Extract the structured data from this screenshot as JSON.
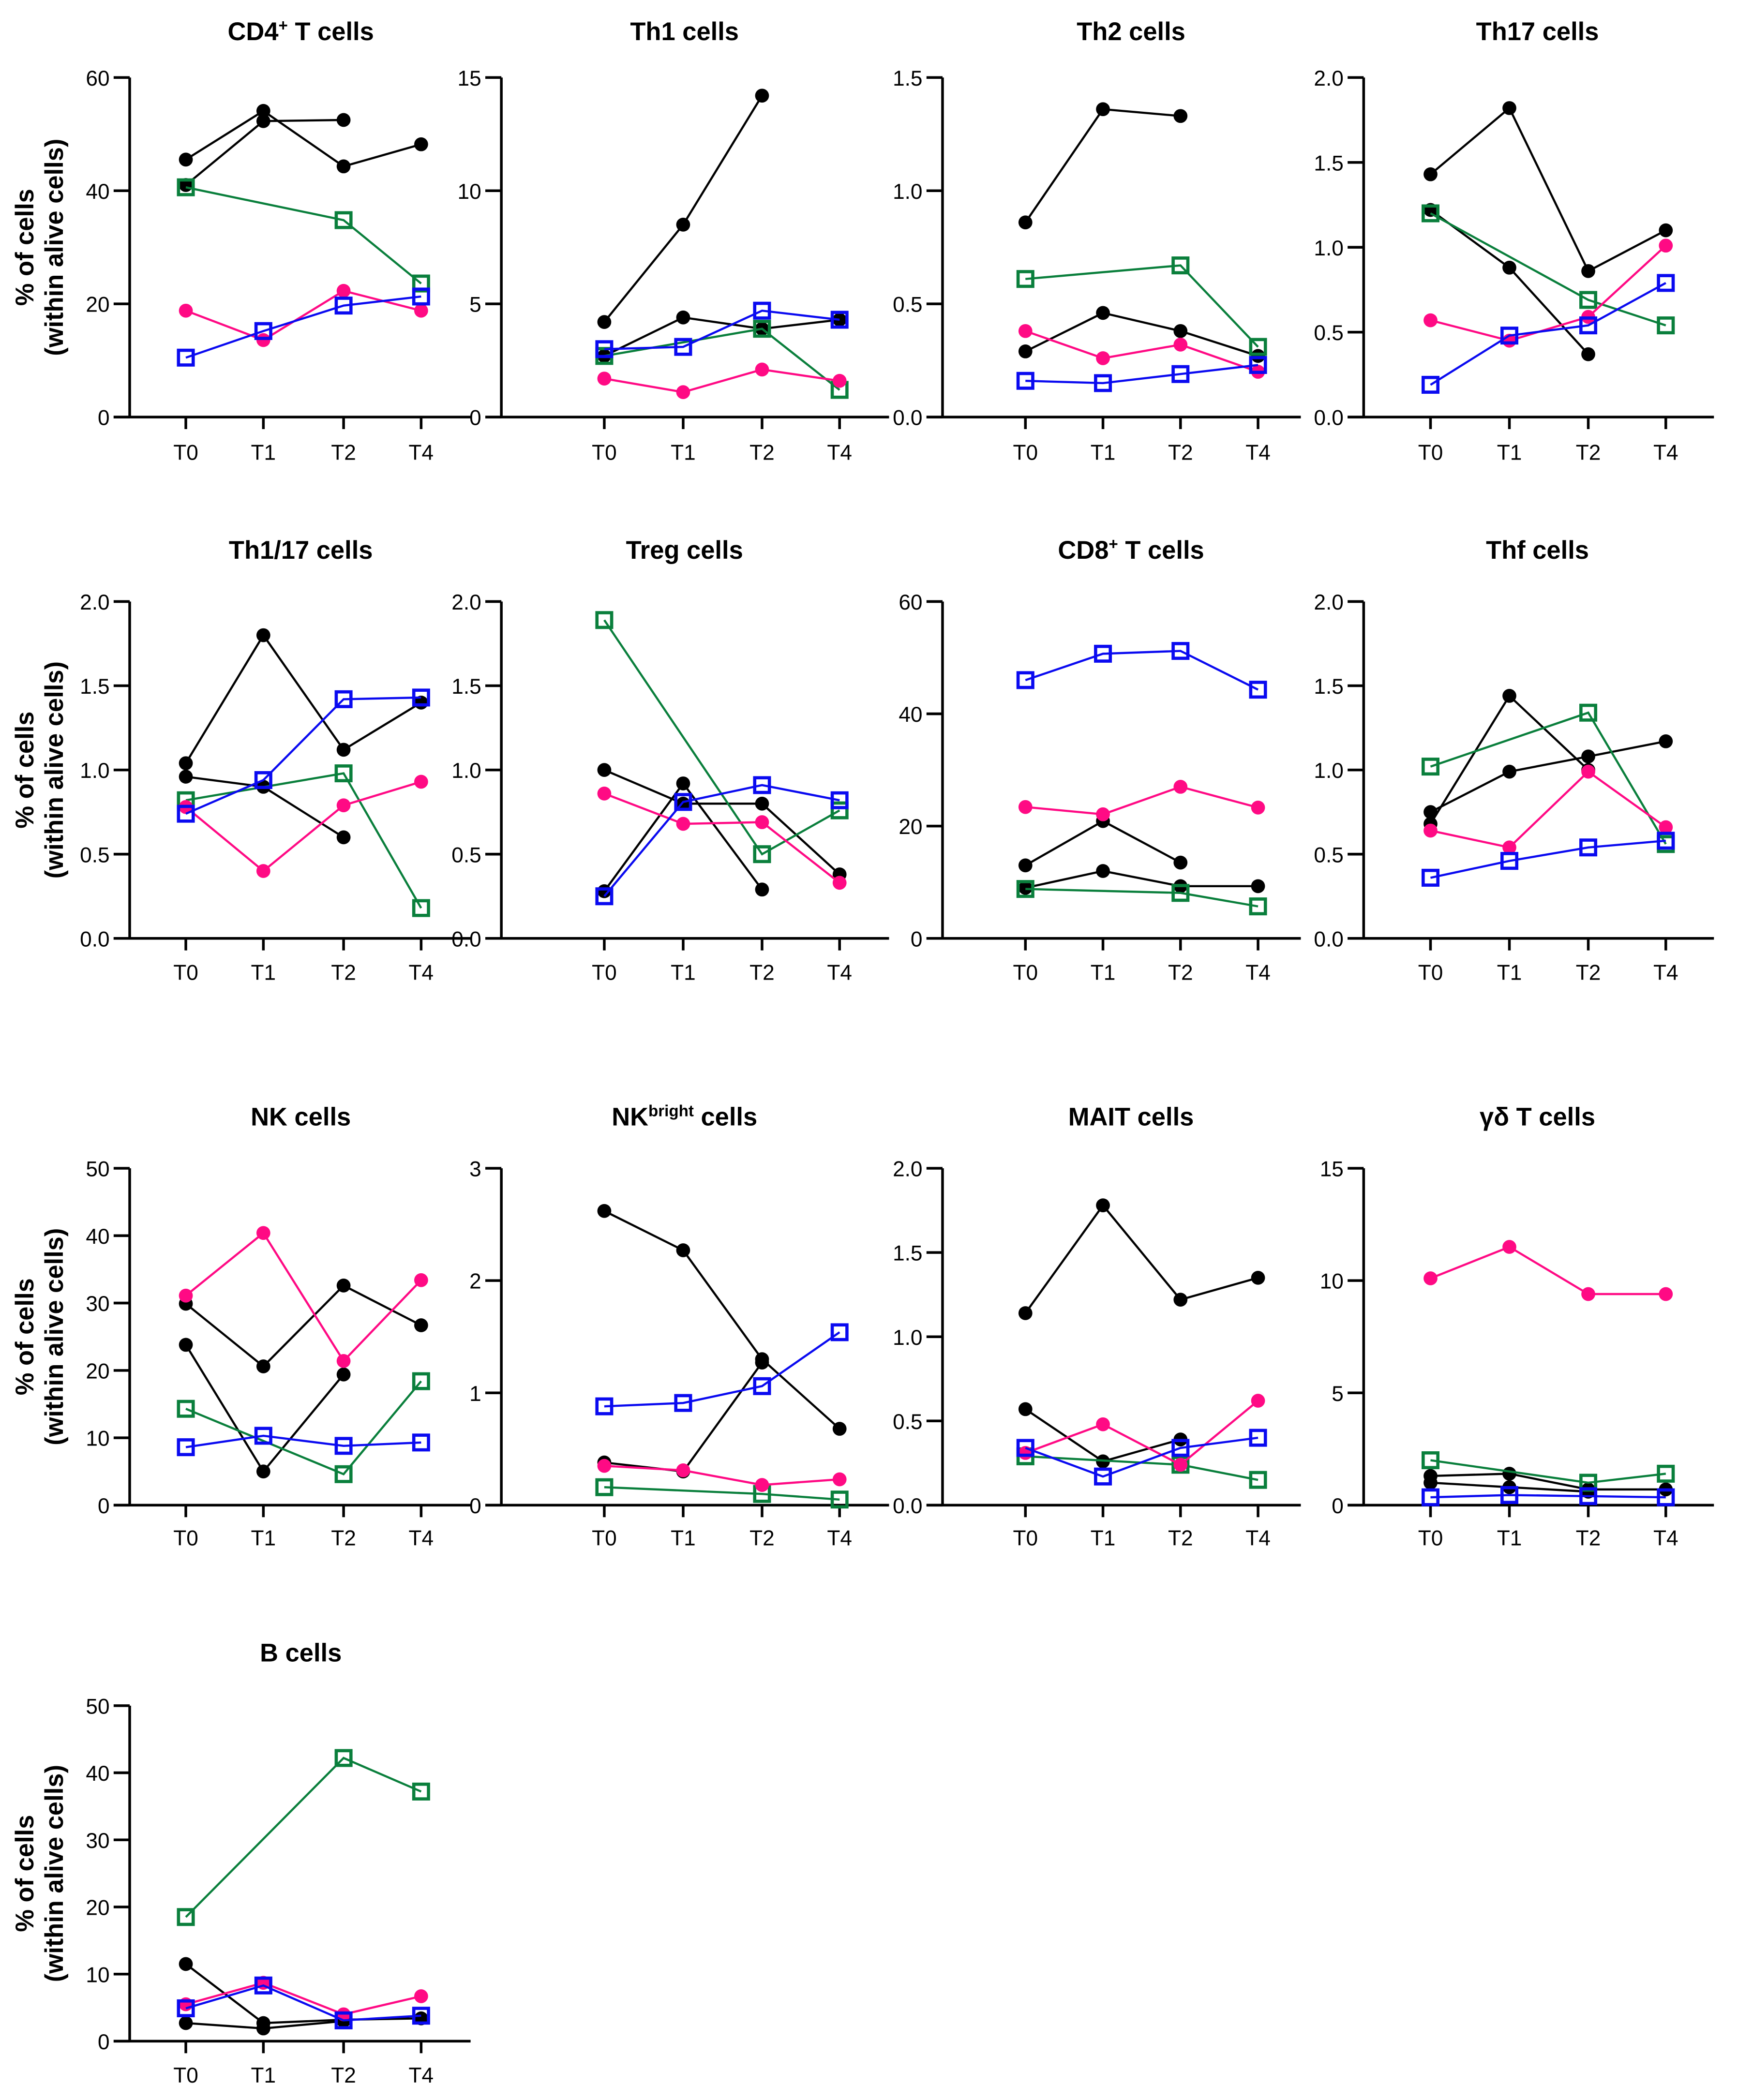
{
  "figure": {
    "ylabel_line1": "% of cells",
    "ylabel_line2": "(within alive cells)"
  },
  "legend_styles": {
    "black": {
      "color": "#000000",
      "marker": "filled-circle"
    },
    "pink": {
      "color": "#FF0A84",
      "marker": "filled-circle"
    },
    "green": {
      "color": "#0A7F3C",
      "marker": "open-square"
    },
    "blue": {
      "color": "#0A0AF0",
      "marker": "open-square"
    }
  },
  "chart_data": [
    {
      "type": "line",
      "title": "CD4",
      "title_sup": "+",
      "title_rest": " T cells",
      "categories": [
        "T0",
        "T1",
        "T2",
        "T4"
      ],
      "ylim": [
        0,
        60
      ],
      "yticks": [
        "0",
        "20",
        "40",
        "60"
      ],
      "ytick_values": [
        0,
        20,
        40,
        60
      ],
      "ylabel": "% of cells (within alive cells)",
      "series": [
        {
          "name": "black-1",
          "style": "black",
          "values": [
            45.5,
            54.1,
            44.3,
            48.2
          ]
        },
        {
          "name": "black-2",
          "style": "black",
          "values": [
            41.0,
            52.3,
            52.5,
            null
          ]
        },
        {
          "name": "green",
          "style": "green",
          "values": [
            40.6,
            null,
            34.8,
            23.6
          ]
        },
        {
          "name": "pink",
          "style": "pink",
          "values": [
            18.8,
            13.6,
            22.3,
            18.8
          ]
        },
        {
          "name": "blue",
          "style": "blue",
          "values": [
            10.5,
            15.2,
            19.7,
            21.3
          ]
        }
      ]
    },
    {
      "type": "line",
      "title": "Th1 cells",
      "title_sup": "",
      "title_rest": "",
      "categories": [
        "T0",
        "T1",
        "T2",
        "T4"
      ],
      "ylim": [
        0,
        15
      ],
      "yticks": [
        "0",
        "5",
        "10",
        "15"
      ],
      "ytick_values": [
        0,
        5,
        10,
        15
      ],
      "ylabel": "",
      "series": [
        {
          "name": "black-1",
          "style": "black",
          "values": [
            4.2,
            8.5,
            14.2,
            null
          ]
        },
        {
          "name": "black-2",
          "style": "black",
          "values": [
            2.7,
            4.4,
            3.9,
            4.3
          ]
        },
        {
          "name": "green",
          "style": "green",
          "values": [
            2.7,
            null,
            3.9,
            1.2
          ]
        },
        {
          "name": "pink",
          "style": "pink",
          "values": [
            1.7,
            1.1,
            2.1,
            1.6
          ]
        },
        {
          "name": "blue",
          "style": "blue",
          "values": [
            3.0,
            3.1,
            4.7,
            4.3
          ]
        }
      ]
    },
    {
      "type": "line",
      "title": "Th2 cells",
      "title_sup": "",
      "title_rest": "",
      "categories": [
        "T0",
        "T1",
        "T2",
        "T4"
      ],
      "ylim": [
        0,
        1.5
      ],
      "yticks": [
        "0.0",
        "0.5",
        "1.0",
        "1.5"
      ],
      "ytick_values": [
        0,
        0.5,
        1.0,
        1.5
      ],
      "ylabel": "",
      "series": [
        {
          "name": "black-1",
          "style": "black",
          "values": [
            0.86,
            1.36,
            1.33,
            null
          ]
        },
        {
          "name": "black-2",
          "style": "black",
          "values": [
            0.29,
            0.46,
            0.38,
            0.27
          ]
        },
        {
          "name": "green",
          "style": "green",
          "values": [
            0.61,
            null,
            0.67,
            0.31
          ]
        },
        {
          "name": "pink",
          "style": "pink",
          "values": [
            0.38,
            0.26,
            0.32,
            0.2
          ]
        },
        {
          "name": "blue",
          "style": "blue",
          "values": [
            0.16,
            0.15,
            0.19,
            0.23
          ]
        }
      ]
    },
    {
      "type": "line",
      "title": "Th17 cells",
      "title_sup": "",
      "title_rest": "",
      "categories": [
        "T0",
        "T1",
        "T2",
        "T4"
      ],
      "ylim": [
        0,
        2.0
      ],
      "yticks": [
        "0.0",
        "0.5",
        "1.0",
        "1.5",
        "2.0"
      ],
      "ytick_values": [
        0,
        0.5,
        1.0,
        1.5,
        2.0
      ],
      "ylabel": "",
      "series": [
        {
          "name": "black-1",
          "style": "black",
          "values": [
            1.43,
            1.82,
            0.86,
            1.1
          ]
        },
        {
          "name": "black-2",
          "style": "black",
          "values": [
            1.22,
            0.88,
            0.37,
            null
          ]
        },
        {
          "name": "green",
          "style": "green",
          "values": [
            1.2,
            null,
            0.69,
            0.54
          ]
        },
        {
          "name": "pink",
          "style": "pink",
          "values": [
            0.57,
            0.45,
            0.59,
            1.01
          ]
        },
        {
          "name": "blue",
          "style": "blue",
          "values": [
            0.19,
            0.48,
            0.54,
            0.79
          ]
        }
      ]
    },
    {
      "type": "line",
      "title": "Th1/17 cells",
      "title_sup": "",
      "title_rest": "",
      "categories": [
        "T0",
        "T1",
        "T2",
        "T4"
      ],
      "ylim": [
        0,
        2.0
      ],
      "yticks": [
        "0.0",
        "0.5",
        "1.0",
        "1.5",
        "2.0"
      ],
      "ytick_values": [
        0,
        0.5,
        1.0,
        1.5,
        2.0
      ],
      "ylabel": "% of cells (within alive cells)",
      "series": [
        {
          "name": "black-1",
          "style": "black",
          "values": [
            1.04,
            1.8,
            1.12,
            1.4
          ]
        },
        {
          "name": "black-2",
          "style": "black",
          "values": [
            0.96,
            0.9,
            0.6,
            null
          ]
        },
        {
          "name": "green",
          "style": "green",
          "values": [
            0.82,
            null,
            0.98,
            0.18
          ]
        },
        {
          "name": "pink",
          "style": "pink",
          "values": [
            0.78,
            0.4,
            0.79,
            0.93
          ]
        },
        {
          "name": "blue",
          "style": "blue",
          "values": [
            0.74,
            0.94,
            1.42,
            1.43
          ]
        }
      ]
    },
    {
      "type": "line",
      "title": "Treg cells",
      "title_sup": "",
      "title_rest": "",
      "categories": [
        "T0",
        "T1",
        "T2",
        "T4"
      ],
      "ylim": [
        0,
        2.0
      ],
      "yticks": [
        "0.0",
        "0.5",
        "1.0",
        "1.5",
        "2.0"
      ],
      "ytick_values": [
        0,
        0.5,
        1.0,
        1.5,
        2.0
      ],
      "ylabel": "",
      "series": [
        {
          "name": "black-1",
          "style": "black",
          "values": [
            1.0,
            0.8,
            0.8,
            0.38
          ]
        },
        {
          "name": "black-2",
          "style": "black",
          "values": [
            0.28,
            0.92,
            0.29,
            null
          ]
        },
        {
          "name": "green",
          "style": "green",
          "values": [
            1.89,
            null,
            0.5,
            0.76
          ]
        },
        {
          "name": "pink",
          "style": "pink",
          "values": [
            0.86,
            0.68,
            0.69,
            0.33
          ]
        },
        {
          "name": "blue",
          "style": "blue",
          "values": [
            0.25,
            0.81,
            0.91,
            0.82
          ]
        }
      ]
    },
    {
      "type": "line",
      "title": "CD8",
      "title_sup": "+",
      "title_rest": " T cells",
      "categories": [
        "T0",
        "T1",
        "T2",
        "T4"
      ],
      "ylim": [
        0,
        60
      ],
      "yticks": [
        "0",
        "20",
        "40",
        "60"
      ],
      "ytick_values": [
        0,
        20,
        40,
        60
      ],
      "ylabel": "",
      "series": [
        {
          "name": "black-1",
          "style": "black",
          "values": [
            13.0,
            20.9,
            13.5,
            null
          ]
        },
        {
          "name": "black-2",
          "style": "black",
          "values": [
            9.0,
            12.0,
            9.3,
            9.3
          ]
        },
        {
          "name": "green",
          "style": "green",
          "values": [
            8.8,
            null,
            8.1,
            5.7
          ]
        },
        {
          "name": "pink",
          "style": "pink",
          "values": [
            23.4,
            22.1,
            27.0,
            23.3
          ]
        },
        {
          "name": "blue",
          "style": "blue",
          "values": [
            46.0,
            50.7,
            51.2,
            44.3
          ]
        }
      ]
    },
    {
      "type": "line",
      "title": "Thf cells",
      "title_sup": "",
      "title_rest": "",
      "categories": [
        "T0",
        "T1",
        "T2",
        "T4"
      ],
      "ylim": [
        0,
        2.0
      ],
      "yticks": [
        "0.0",
        "0.5",
        "1.0",
        "1.5",
        "2.0"
      ],
      "ytick_values": [
        0,
        0.5,
        1.0,
        1.5,
        2.0
      ],
      "ylabel": "",
      "series": [
        {
          "name": "black-1",
          "style": "black",
          "values": [
            0.68,
            1.44,
            1.0,
            null
          ]
        },
        {
          "name": "black-2",
          "style": "black",
          "values": [
            0.75,
            0.99,
            1.08,
            1.17
          ]
        },
        {
          "name": "green",
          "style": "green",
          "values": [
            1.02,
            null,
            1.34,
            0.56
          ]
        },
        {
          "name": "pink",
          "style": "pink",
          "values": [
            0.64,
            0.54,
            0.99,
            0.66
          ]
        },
        {
          "name": "blue",
          "style": "blue",
          "values": [
            0.36,
            0.46,
            0.54,
            0.58
          ]
        }
      ]
    },
    {
      "type": "line",
      "title": "NK cells",
      "title_sup": "",
      "title_rest": "",
      "categories": [
        "T0",
        "T1",
        "T2",
        "T4"
      ],
      "ylim": [
        0,
        50
      ],
      "yticks": [
        "0",
        "10",
        "20",
        "30",
        "40",
        "50"
      ],
      "ytick_values": [
        0,
        10,
        20,
        30,
        40,
        50
      ],
      "ylabel": "% of cells (within alive cells)",
      "series": [
        {
          "name": "black-1",
          "style": "black",
          "values": [
            29.9,
            20.6,
            32.6,
            26.7
          ]
        },
        {
          "name": "black-2",
          "style": "black",
          "values": [
            23.8,
            5.0,
            19.4,
            null
          ]
        },
        {
          "name": "green",
          "style": "green",
          "values": [
            14.3,
            null,
            4.6,
            18.4
          ]
        },
        {
          "name": "pink",
          "style": "pink",
          "values": [
            31.1,
            40.4,
            21.4,
            33.4
          ]
        },
        {
          "name": "blue",
          "style": "blue",
          "values": [
            8.6,
            10.3,
            8.8,
            9.3
          ]
        }
      ]
    },
    {
      "type": "line",
      "title": "NK",
      "title_sup": "bright",
      "title_rest": " cells",
      "categories": [
        "T0",
        "T1",
        "T2",
        "T4"
      ],
      "ylim": [
        0,
        3
      ],
      "yticks": [
        "0",
        "1",
        "2",
        "3"
      ],
      "ytick_values": [
        0,
        1,
        2,
        3
      ],
      "ylabel": "",
      "series": [
        {
          "name": "black-1",
          "style": "black",
          "values": [
            2.62,
            2.27,
            1.3,
            0.68
          ]
        },
        {
          "name": "black-2",
          "style": "black",
          "values": [
            0.38,
            0.3,
            1.27,
            null
          ]
        },
        {
          "name": "green",
          "style": "green",
          "values": [
            0.16,
            null,
            0.1,
            0.05
          ]
        },
        {
          "name": "pink",
          "style": "pink",
          "values": [
            0.35,
            0.31,
            0.18,
            0.23
          ]
        },
        {
          "name": "blue",
          "style": "blue",
          "values": [
            0.88,
            0.91,
            1.06,
            1.54
          ]
        }
      ]
    },
    {
      "type": "line",
      "title": "MAIT cells",
      "title_sup": "",
      "title_rest": "",
      "categories": [
        "T0",
        "T1",
        "T2",
        "T4"
      ],
      "ylim": [
        0,
        2.0
      ],
      "yticks": [
        "0.0",
        "0.5",
        "1.0",
        "1.5",
        "2.0"
      ],
      "ytick_values": [
        0,
        0.5,
        1.0,
        1.5,
        2.0
      ],
      "ylabel": "",
      "series": [
        {
          "name": "black-1",
          "style": "black",
          "values": [
            1.14,
            1.78,
            1.22,
            1.35
          ]
        },
        {
          "name": "black-2",
          "style": "black",
          "values": [
            0.57,
            0.26,
            0.39,
            null
          ]
        },
        {
          "name": "green",
          "style": "green",
          "values": [
            0.29,
            null,
            0.24,
            0.15
          ]
        },
        {
          "name": "pink",
          "style": "pink",
          "values": [
            0.31,
            0.48,
            0.24,
            0.62
          ]
        },
        {
          "name": "blue",
          "style": "blue",
          "values": [
            0.34,
            0.17,
            0.34,
            0.4
          ]
        }
      ]
    },
    {
      "type": "line",
      "title": "γδ T cells",
      "title_sup": "",
      "title_rest": "",
      "categories": [
        "T0",
        "T1",
        "T2",
        "T4"
      ],
      "ylim": [
        0,
        15
      ],
      "yticks": [
        "0",
        "5",
        "10",
        "15"
      ],
      "ytick_values": [
        0,
        5,
        10,
        15
      ],
      "ylabel": "",
      "series": [
        {
          "name": "black-1",
          "style": "black",
          "values": [
            1.3,
            1.4,
            0.7,
            0.7
          ]
        },
        {
          "name": "black-2",
          "style": "black",
          "values": [
            1.0,
            0.8,
            0.6,
            null
          ]
        },
        {
          "name": "green",
          "style": "green",
          "values": [
            2.0,
            null,
            1.0,
            1.4
          ]
        },
        {
          "name": "pink",
          "style": "pink",
          "values": [
            10.1,
            11.5,
            9.4,
            9.4
          ]
        },
        {
          "name": "blue",
          "style": "blue",
          "values": [
            0.35,
            0.45,
            0.4,
            0.35
          ]
        }
      ]
    },
    {
      "type": "line",
      "title": "B cells",
      "title_sup": "",
      "title_rest": "",
      "categories": [
        "T0",
        "T1",
        "T2",
        "T4"
      ],
      "ylim": [
        0,
        50
      ],
      "yticks": [
        "0",
        "10",
        "20",
        "30",
        "40",
        "50"
      ],
      "ytick_values": [
        0,
        10,
        20,
        30,
        40,
        50
      ],
      "ylabel": "% of cells (within alive cells)",
      "series": [
        {
          "name": "black-1",
          "style": "black",
          "values": [
            11.5,
            2.7,
            3.2,
            3.4
          ]
        },
        {
          "name": "black-2",
          "style": "black",
          "values": [
            2.7,
            1.9,
            3.0,
            null
          ]
        },
        {
          "name": "green",
          "style": "green",
          "values": [
            18.5,
            null,
            42.2,
            37.2
          ]
        },
        {
          "name": "pink",
          "style": "pink",
          "values": [
            5.5,
            8.7,
            4.0,
            6.7
          ]
        },
        {
          "name": "blue",
          "style": "blue",
          "values": [
            4.9,
            8.3,
            3.1,
            3.8
          ]
        }
      ]
    }
  ]
}
